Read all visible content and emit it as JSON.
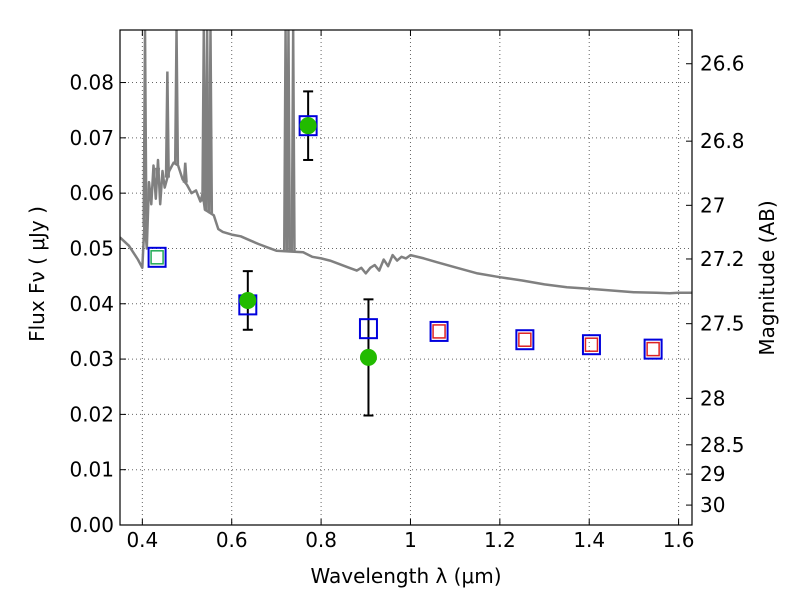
{
  "chart_data": {
    "type": "scatter",
    "title": "",
    "xlabel": "Wavelength  λ (μm)",
    "ylabel": "Flux  Fν  ( μJy )",
    "ylabel_right": "Magnitude (AB)",
    "xlim": [
      0.35,
      1.63
    ],
    "ylim": [
      0.0,
      0.0895
    ],
    "grid": true,
    "legend": "none",
    "x_ticks": [
      0.4,
      0.6,
      0.8,
      1.0,
      1.2,
      1.4,
      1.6
    ],
    "x_tick_labels": [
      "0.4",
      "0.6",
      "0.8",
      "1",
      "1.2",
      "1.4",
      "1.6"
    ],
    "y_ticks": [
      0.0,
      0.01,
      0.02,
      0.03,
      0.04,
      0.05,
      0.06,
      0.07,
      0.08
    ],
    "y_tick_labels": [
      "0.00",
      "0.01",
      "0.02",
      "0.03",
      "0.04",
      "0.05",
      "0.06",
      "0.07",
      "0.08"
    ],
    "right_ticks": [
      {
        "label": "26.6",
        "flux": 0.0834
      },
      {
        "label": "26.8",
        "flux": 0.0694
      },
      {
        "label": "27",
        "flux": 0.0578
      },
      {
        "label": "27.2",
        "flux": 0.0481
      },
      {
        "label": "27.5",
        "flux": 0.0364
      },
      {
        "label": "28",
        "flux": 0.0229
      },
      {
        "label": "28.5",
        "flux": 0.0145
      },
      {
        "label": "29",
        "flux": 0.0092
      },
      {
        "label": "30",
        "flux": 0.0036
      }
    ],
    "series": [
      {
        "kind": "spectrum",
        "color": "#808080",
        "points": [
          [
            0.35,
            0.052
          ],
          [
            0.37,
            0.0505
          ],
          [
            0.39,
            0.048
          ],
          [
            0.4,
            0.0465
          ],
          [
            0.405,
            0.055
          ],
          [
            0.41,
            0.05
          ],
          [
            0.415,
            0.062
          ],
          [
            0.42,
            0.058
          ],
          [
            0.425,
            0.065
          ],
          [
            0.43,
            0.059
          ],
          [
            0.435,
            0.066
          ],
          [
            0.44,
            0.058
          ],
          [
            0.445,
            0.064
          ],
          [
            0.45,
            0.061
          ],
          [
            0.46,
            0.064
          ],
          [
            0.47,
            0.0655
          ],
          [
            0.48,
            0.065
          ],
          [
            0.49,
            0.0625
          ],
          [
            0.5,
            0.0615
          ],
          [
            0.51,
            0.06
          ],
          [
            0.52,
            0.0605
          ],
          [
            0.53,
            0.0585
          ],
          [
            0.535,
            0.06
          ],
          [
            0.54,
            0.057
          ],
          [
            0.55,
            0.0565
          ],
          [
            0.56,
            0.056
          ],
          [
            0.57,
            0.0535
          ],
          [
            0.58,
            0.053
          ],
          [
            0.6,
            0.0525
          ],
          [
            0.62,
            0.0522
          ],
          [
            0.64,
            0.0515
          ],
          [
            0.66,
            0.0508
          ],
          [
            0.68,
            0.0502
          ],
          [
            0.7,
            0.0496
          ],
          [
            0.72,
            0.0495
          ],
          [
            0.74,
            0.0494
          ],
          [
            0.76,
            0.0493
          ],
          [
            0.78,
            0.0485
          ],
          [
            0.8,
            0.0482
          ],
          [
            0.82,
            0.0478
          ],
          [
            0.84,
            0.0472
          ],
          [
            0.86,
            0.0466
          ],
          [
            0.88,
            0.046
          ],
          [
            0.89,
            0.0465
          ],
          [
            0.9,
            0.0455
          ],
          [
            0.91,
            0.0465
          ],
          [
            0.92,
            0.047
          ],
          [
            0.93,
            0.046
          ],
          [
            0.94,
            0.048
          ],
          [
            0.95,
            0.0468
          ],
          [
            0.96,
            0.0488
          ],
          [
            0.97,
            0.0478
          ],
          [
            0.98,
            0.0485
          ],
          [
            0.99,
            0.0482
          ],
          [
            1.0,
            0.0488
          ],
          [
            1.03,
            0.0482
          ],
          [
            1.06,
            0.0475
          ],
          [
            1.1,
            0.0466
          ],
          [
            1.15,
            0.0455
          ],
          [
            1.2,
            0.0448
          ],
          [
            1.25,
            0.0442
          ],
          [
            1.3,
            0.0435
          ],
          [
            1.35,
            0.043
          ],
          [
            1.4,
            0.0427
          ],
          [
            1.45,
            0.0424
          ],
          [
            1.5,
            0.0421
          ],
          [
            1.55,
            0.042
          ],
          [
            1.58,
            0.0419
          ],
          [
            1.6,
            0.042
          ],
          [
            1.63,
            0.042
          ]
        ]
      },
      {
        "kind": "emission_lines",
        "color": "#808080",
        "lines": [
          {
            "x": 0.406,
            "top": 0.0895
          },
          {
            "x": 0.434,
            "top": 0.0625
          },
          {
            "x": 0.456,
            "top": 0.082
          },
          {
            "x": 0.4765,
            "top": 0.0895
          },
          {
            "x": 0.496,
            "top": 0.0655
          },
          {
            "x": 0.5375,
            "top": 0.0895
          },
          {
            "x": 0.545,
            "top": 0.0895
          },
          {
            "x": 0.5525,
            "top": 0.0895
          },
          {
            "x": 0.7205,
            "top": 0.0895
          },
          {
            "x": 0.727,
            "top": 0.0895
          },
          {
            "x": 0.7375,
            "top": 0.0895
          }
        ]
      },
      {
        "kind": "observed",
        "marker": "circle",
        "color": "#22bb00",
        "points": [
          {
            "x": 0.636,
            "y": 0.0406,
            "yerr": 0.0053
          },
          {
            "x": 0.771,
            "y": 0.0722,
            "yerr": 0.0062
          },
          {
            "x": 0.906,
            "y": 0.0303,
            "yerr": 0.0105
          }
        ]
      },
      {
        "kind": "model_large",
        "marker": "square",
        "color": "#0000dd",
        "points": [
          {
            "x": 0.433,
            "y": 0.0484
          },
          {
            "x": 0.636,
            "y": 0.0398
          },
          {
            "x": 0.771,
            "y": 0.0722
          },
          {
            "x": 0.906,
            "y": 0.0355
          },
          {
            "x": 1.064,
            "y": 0.035
          },
          {
            "x": 1.256,
            "y": 0.0335
          },
          {
            "x": 1.405,
            "y": 0.0326
          },
          {
            "x": 1.543,
            "y": 0.0318
          }
        ]
      },
      {
        "kind": "model_small",
        "marker": "square",
        "points": [
          {
            "x": 0.433,
            "y": 0.0484,
            "color": "#22aa55"
          },
          {
            "x": 1.064,
            "y": 0.035,
            "color": "#dd2222"
          },
          {
            "x": 1.256,
            "y": 0.0335,
            "color": "#dd2222"
          },
          {
            "x": 1.405,
            "y": 0.0326,
            "color": "#dd2222"
          },
          {
            "x": 1.543,
            "y": 0.0318,
            "color": "#dd2222"
          }
        ]
      }
    ]
  }
}
